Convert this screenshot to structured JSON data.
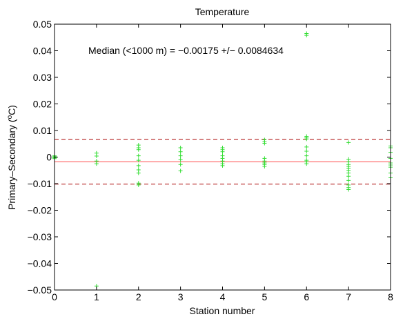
{
  "chart_data": {
    "type": "scatter",
    "title": "Temperature",
    "xlabel": "Station number",
    "ylabel_main": "Primary–Secondary (",
    "ylabel_sup": "o",
    "ylabel_end": "C)",
    "xlim": [
      0,
      8
    ],
    "ylim": [
      -0.05,
      0.05
    ],
    "xticks": [
      0,
      1,
      2,
      3,
      4,
      5,
      6,
      7,
      8
    ],
    "yticks": [
      -0.05,
      -0.04,
      -0.03,
      -0.02,
      -0.01,
      0,
      0.01,
      0.02,
      0.03,
      0.04,
      0.05
    ],
    "ytick_labels": [
      "−0.05",
      "−0.04",
      "−0.03",
      "−0.02",
      "−0.01",
      "0",
      "0.01",
      "0.02",
      "0.03",
      "0.04",
      "0.05"
    ],
    "grid": false,
    "annotation": "Median (<1000 m) = −0.00175 +/− 0.0084634",
    "median": -0.00175,
    "upper_bound": 0.0066634,
    "lower_bound": -0.0101634,
    "colors": {
      "points": "#33dd33",
      "median_line": "#ff4a4a",
      "bound_lines": "#aa0000",
      "axes": "#000000"
    },
    "points": [
      {
        "x": 0,
        "y": 0.0005
      },
      {
        "x": 0,
        "y": 0.0002
      },
      {
        "x": 0,
        "y": -0.0001
      },
      {
        "x": 0,
        "y": -0.0003
      },
      {
        "x": 0,
        "y": -0.0006
      },
      {
        "x": 1,
        "y": 0.0015
      },
      {
        "x": 1,
        "y": 0.0004
      },
      {
        "x": 1,
        "y": -0.0015
      },
      {
        "x": 1,
        "y": -0.0025
      },
      {
        "x": 1,
        "y": -0.0485
      },
      {
        "x": 2,
        "y": 0.0045
      },
      {
        "x": 2,
        "y": 0.0035
      },
      {
        "x": 2,
        "y": 0.0028
      },
      {
        "x": 2,
        "y": 0.0005
      },
      {
        "x": 2,
        "y": -0.0012
      },
      {
        "x": 2,
        "y": -0.0032
      },
      {
        "x": 2,
        "y": -0.0048
      },
      {
        "x": 2,
        "y": -0.006
      },
      {
        "x": 2,
        "y": -0.0098
      },
      {
        "x": 2,
        "y": -0.0105
      },
      {
        "x": 3,
        "y": 0.0035
      },
      {
        "x": 3,
        "y": 0.002
      },
      {
        "x": 3,
        "y": 0.0005
      },
      {
        "x": 3,
        "y": -0.001
      },
      {
        "x": 3,
        "y": -0.0028
      },
      {
        "x": 3,
        "y": -0.0052
      },
      {
        "x": 4,
        "y": 0.0035
      },
      {
        "x": 4,
        "y": 0.0028
      },
      {
        "x": 4,
        "y": 0.002
      },
      {
        "x": 4,
        "y": 0.0005
      },
      {
        "x": 4,
        "y": -0.0005
      },
      {
        "x": 4,
        "y": -0.0015
      },
      {
        "x": 4,
        "y": -0.0025
      },
      {
        "x": 4,
        "y": -0.0032
      },
      {
        "x": 5,
        "y": 0.0065
      },
      {
        "x": 5,
        "y": 0.0058
      },
      {
        "x": 5,
        "y": 0.0052
      },
      {
        "x": 5,
        "y": -0.0005
      },
      {
        "x": 5,
        "y": -0.0015
      },
      {
        "x": 5,
        "y": -0.0022
      },
      {
        "x": 5,
        "y": -0.0028
      },
      {
        "x": 5,
        "y": -0.0035
      },
      {
        "x": 6,
        "y": 0.0465
      },
      {
        "x": 6,
        "y": 0.0458
      },
      {
        "x": 6,
        "y": 0.0078
      },
      {
        "x": 6,
        "y": 0.0072
      },
      {
        "x": 6,
        "y": 0.0068
      },
      {
        "x": 6,
        "y": 0.0038
      },
      {
        "x": 6,
        "y": 0.0022
      },
      {
        "x": 6,
        "y": 0.0005
      },
      {
        "x": 6,
        "y": -0.0012
      },
      {
        "x": 6,
        "y": -0.0018
      },
      {
        "x": 6,
        "y": -0.0025
      },
      {
        "x": 7,
        "y": 0.0055
      },
      {
        "x": 7,
        "y": -0.0008
      },
      {
        "x": 7,
        "y": -0.0018
      },
      {
        "x": 7,
        "y": -0.0028
      },
      {
        "x": 7,
        "y": -0.0035
      },
      {
        "x": 7,
        "y": -0.0042
      },
      {
        "x": 7,
        "y": -0.005
      },
      {
        "x": 7,
        "y": -0.006
      },
      {
        "x": 7,
        "y": -0.0072
      },
      {
        "x": 7,
        "y": -0.0088
      },
      {
        "x": 7,
        "y": -0.0105
      },
      {
        "x": 7,
        "y": -0.0115
      },
      {
        "x": 7,
        "y": -0.0122
      },
      {
        "x": 8,
        "y": 0.0042
      },
      {
        "x": 8,
        "y": 0.0035
      },
      {
        "x": 8,
        "y": 0.0018
      },
      {
        "x": 8,
        "y": -0.0005
      },
      {
        "x": 8,
        "y": -0.0022
      },
      {
        "x": 8,
        "y": -0.003
      },
      {
        "x": 8,
        "y": -0.0038
      },
      {
        "x": 8,
        "y": -0.006
      },
      {
        "x": 8,
        "y": -0.0078
      }
    ]
  }
}
